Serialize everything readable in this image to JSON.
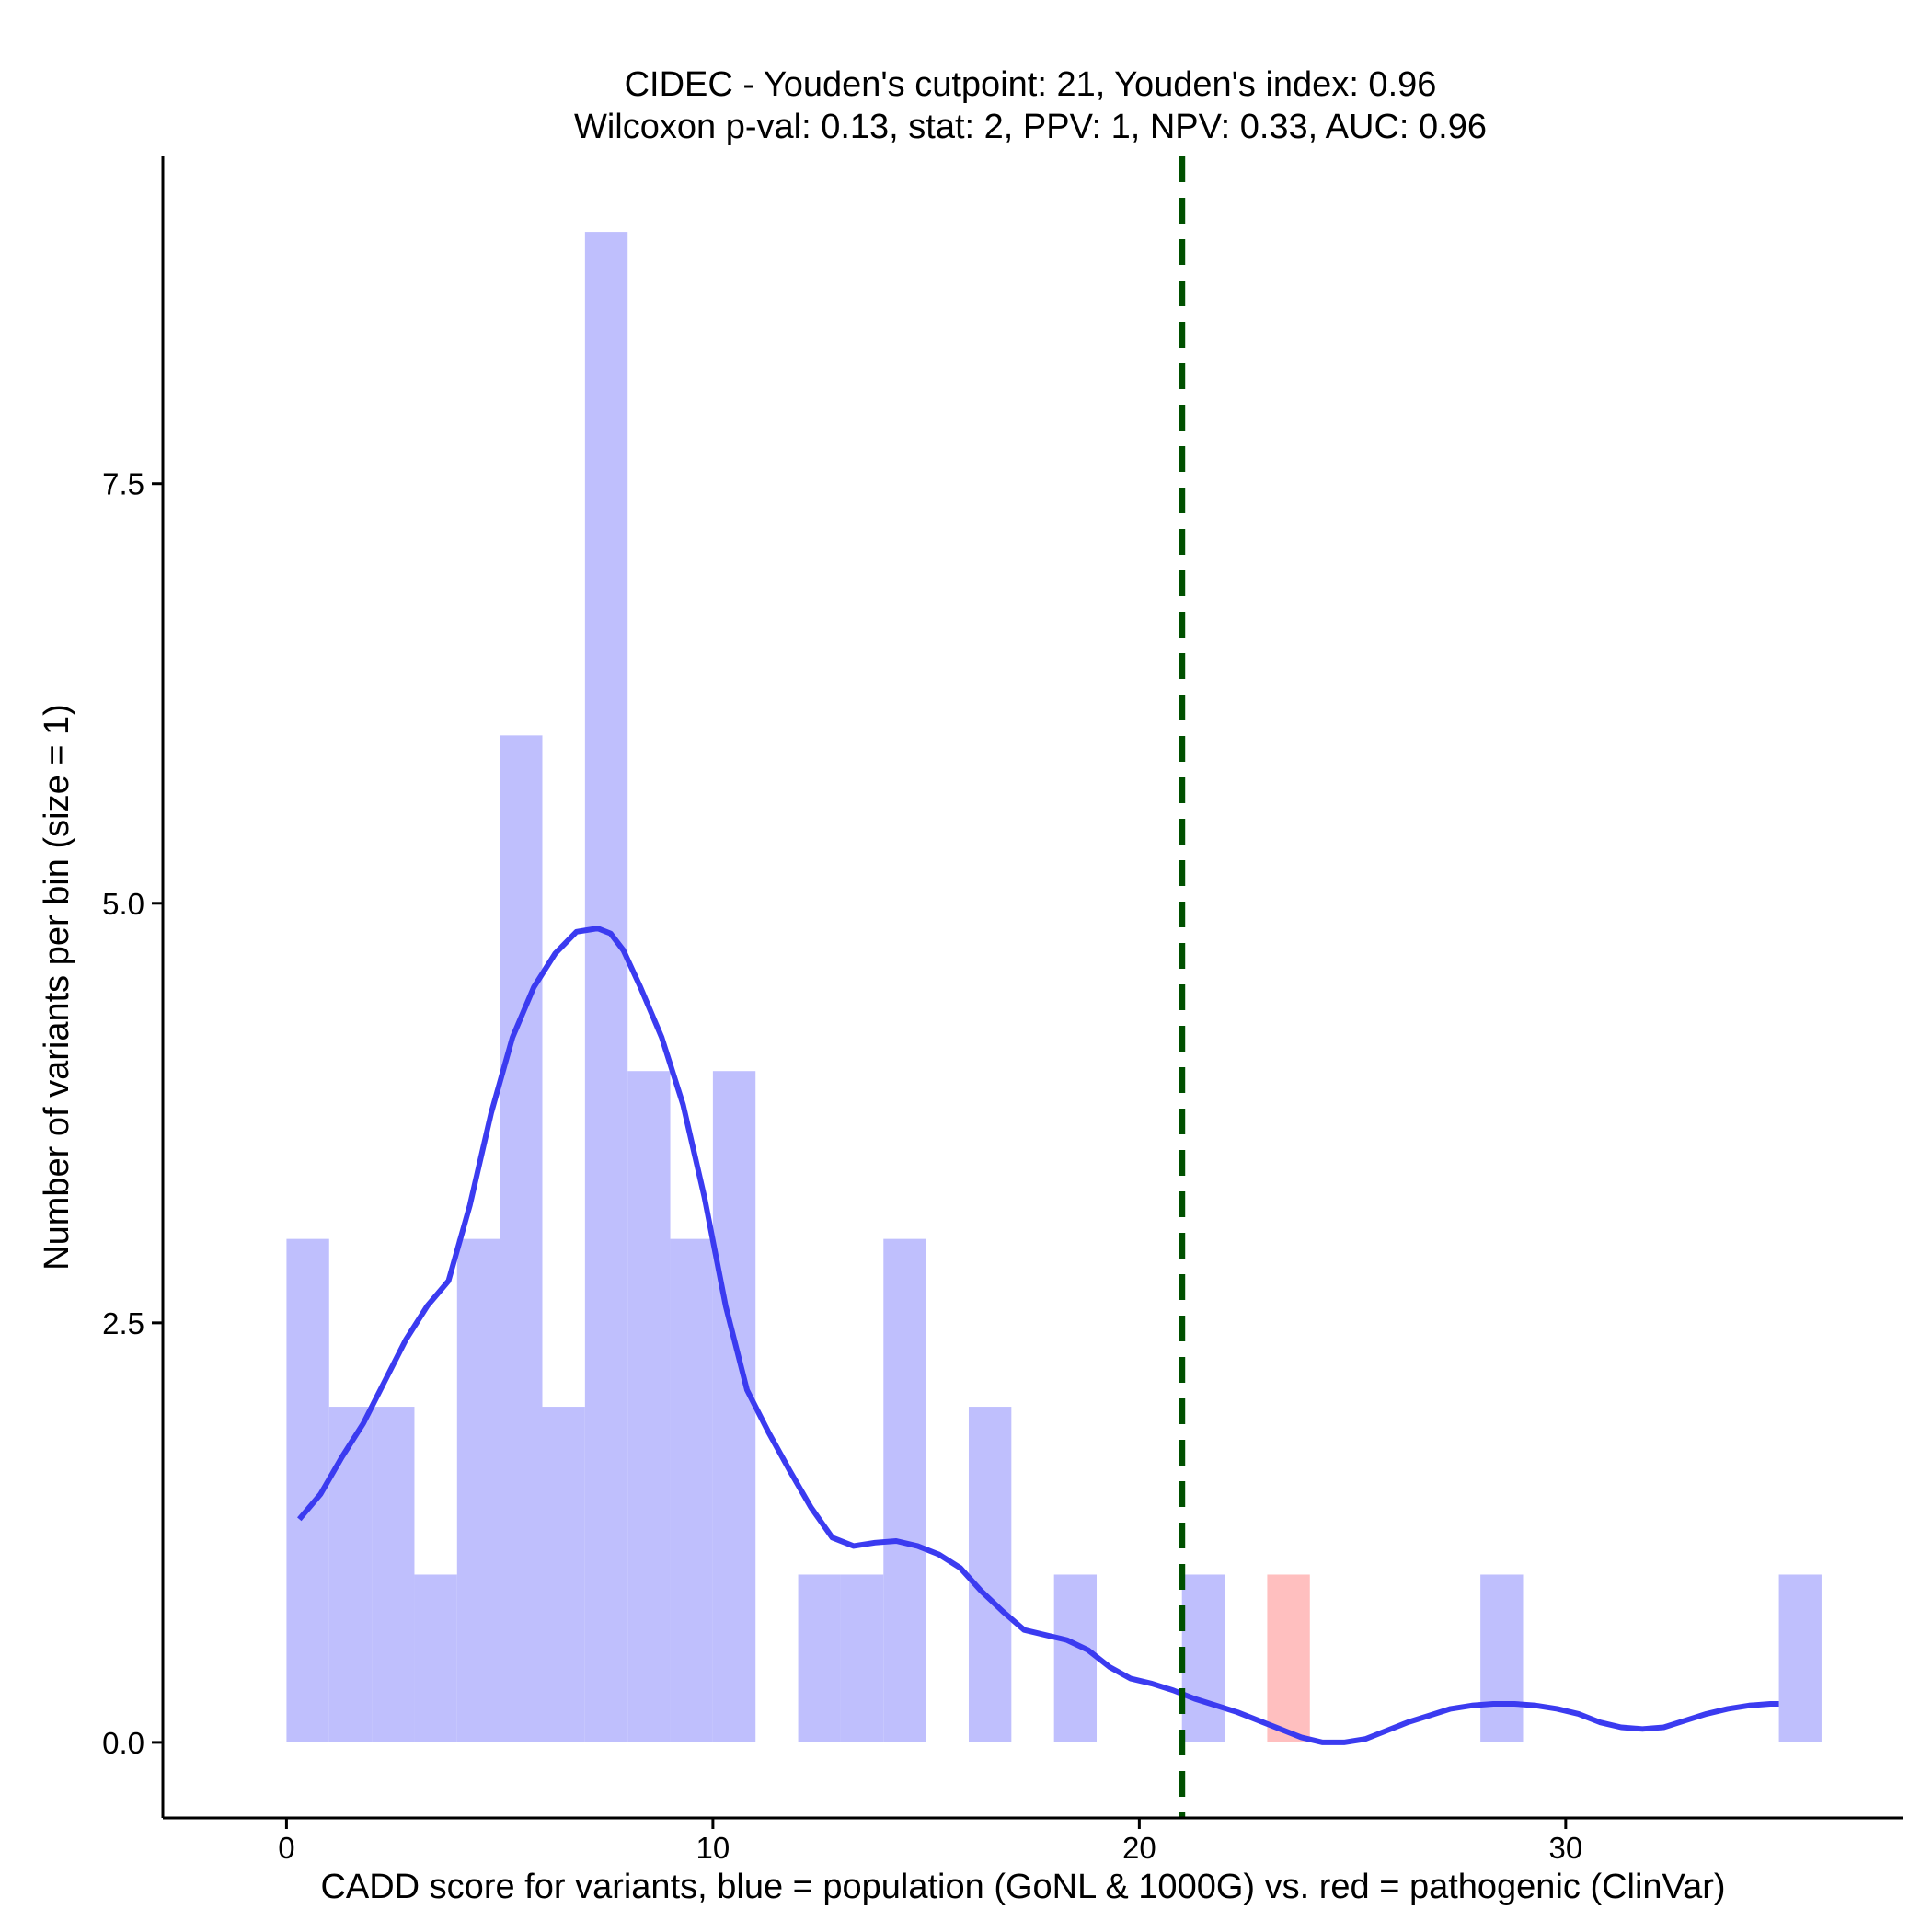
{
  "chart_data": {
    "type": "bar",
    "title": "CIDEC - Youden's cutpoint: 21, Youden's index: 0.96",
    "subtitle": "Wilcoxon p-val: 0.13, stat: 2, PPV: 1, NPV: 0.33, AUC: 0.96",
    "xlabel": "CADD score for variants, blue = population (GoNL & 1000G) vs. red = pathogenic (ClinVar)",
    "ylabel": "Number of variants per bin (size = 1)",
    "xlim": [
      -2.9,
      37.9
    ],
    "ylim": [
      -0.45,
      9.45
    ],
    "x_ticks": [
      0,
      10,
      20,
      30
    ],
    "x_tick_labels": [
      "0",
      "10",
      "20",
      "30"
    ],
    "y_ticks": [
      0,
      2.5,
      5,
      7.5
    ],
    "y_tick_labels": [
      "0.0",
      "2.5",
      "5.0",
      "7.5"
    ],
    "bin_width": 1,
    "series": [
      {
        "color": "#bfbffd",
        "bins": [
          {
            "x0": 0,
            "count": 3
          },
          {
            "x0": 1,
            "count": 2
          },
          {
            "x0": 2,
            "count": 2
          },
          {
            "x0": 3,
            "count": 1
          },
          {
            "x0": 4,
            "count": 3
          },
          {
            "x0": 5,
            "count": 6
          },
          {
            "x0": 6,
            "count": 2
          },
          {
            "x0": 7,
            "count": 9
          },
          {
            "x0": 8,
            "count": 4
          },
          {
            "x0": 9,
            "count": 3
          },
          {
            "x0": 10,
            "count": 4
          },
          {
            "x0": 12,
            "count": 1
          },
          {
            "x0": 13,
            "count": 1
          },
          {
            "x0": 14,
            "count": 3
          },
          {
            "x0": 16,
            "count": 2
          },
          {
            "x0": 18,
            "count": 1
          },
          {
            "x0": 21,
            "count": 1
          },
          {
            "x0": 28,
            "count": 1
          },
          {
            "x0": 35,
            "count": 1
          }
        ]
      },
      {
        "color": "#ffbfbf",
        "bins": [
          {
            "x0": 23,
            "count": 1
          }
        ]
      }
    ],
    "density_curve": {
      "color": "#3b3bf0",
      "x": [
        0.3,
        0.8,
        1.3,
        1.8,
        2.3,
        2.8,
        3.3,
        3.8,
        4.3,
        4.8,
        5.3,
        5.8,
        6.3,
        6.8,
        7.3,
        7.6,
        7.9,
        8.3,
        8.8,
        9.3,
        9.8,
        10.3,
        10.8,
        11.3,
        11.8,
        12.3,
        12.8,
        13.3,
        13.8,
        14.3,
        14.8,
        15.3,
        15.8,
        16.3,
        16.8,
        17.3,
        17.8,
        18.3,
        18.8,
        19.3,
        19.8,
        20.3,
        20.8,
        21.3,
        21.8,
        22.3,
        22.8,
        23.3,
        23.8,
        24.3,
        24.8,
        25.3,
        25.8,
        26.3,
        26.8,
        27.3,
        27.8,
        28.3,
        28.8,
        29.3,
        29.8,
        30.3,
        30.8,
        31.3,
        31.8,
        32.3,
        32.8,
        33.3,
        33.8,
        34.3,
        34.8,
        35.0
      ],
      "y": [
        1.33,
        1.48,
        1.7,
        1.9,
        2.15,
        2.4,
        2.6,
        2.75,
        3.2,
        3.75,
        4.2,
        4.5,
        4.7,
        4.83,
        4.85,
        4.82,
        4.72,
        4.5,
        4.2,
        3.8,
        3.25,
        2.6,
        2.1,
        1.85,
        1.62,
        1.4,
        1.22,
        1.17,
        1.19,
        1.2,
        1.17,
        1.12,
        1.04,
        0.9,
        0.78,
        0.67,
        0.64,
        0.61,
        0.55,
        0.45,
        0.38,
        0.35,
        0.31,
        0.26,
        0.22,
        0.18,
        0.13,
        0.08,
        0.03,
        0.0,
        0.0,
        0.02,
        0.07,
        0.12,
        0.16,
        0.2,
        0.22,
        0.23,
        0.23,
        0.22,
        0.2,
        0.17,
        0.12,
        0.09,
        0.08,
        0.09,
        0.13,
        0.17,
        0.2,
        0.22,
        0.23,
        0.23
      ]
    },
    "cutpoint": {
      "x": 21,
      "color": "#005000",
      "style": "dashed"
    },
    "grid": false,
    "legend": "none"
  }
}
